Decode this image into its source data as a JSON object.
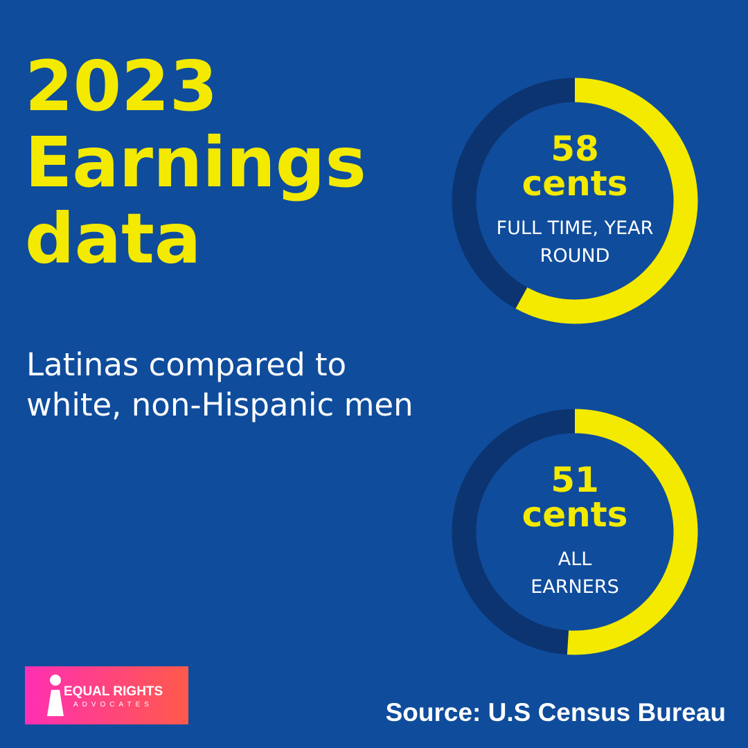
{
  "title": "2023 Earnings data",
  "subtitle": "Latinas compared to white, non-Hispanic men",
  "chart_data": [
    {
      "type": "donut",
      "value": 58,
      "unit": "cents",
      "label": "FULL TIME, YEAR ROUND",
      "ylim": [
        0,
        100
      ],
      "color": "#f3ea00",
      "track_color": "#0c3470"
    },
    {
      "type": "donut",
      "value": 51,
      "unit": "cents",
      "label": "ALL EARNERS",
      "ylim": [
        0,
        100
      ],
      "color": "#f3ea00",
      "track_color": "#0c3470"
    }
  ],
  "logo": {
    "line1": "EQUAL RIGHTS",
    "line2": "ADVOCATES"
  },
  "source": "Source: U.S Census Bureau"
}
